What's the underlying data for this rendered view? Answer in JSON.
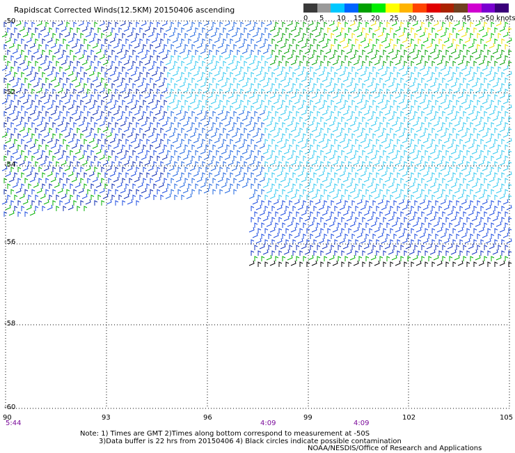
{
  "title": "Rapidscat Corrected Winds(12.5KM) 20150406 ascending",
  "scale": {
    "labels": [
      "0",
      "5",
      "10",
      "15",
      "20",
      "25",
      "30",
      "35",
      "40",
      "45",
      ">50 knots"
    ],
    "colors": [
      "#3a3a3a",
      "#9a9a9a",
      "#00c8ff",
      "#0064ff",
      "#00a000",
      "#00ee00",
      "#ffff00",
      "#ffb400",
      "#ff4400",
      "#e00000",
      "#aa2200",
      "#704020",
      "#d000d0",
      "#7a00d0",
      "#3a007a"
    ]
  },
  "map": {
    "lat_labels": [
      "-50",
      "-52",
      "-54",
      "-56",
      "-58",
      "-60"
    ],
    "lon_labels": [
      "90",
      "93",
      "96",
      "99",
      "102",
      "105"
    ],
    "time_labels": [
      "5:44",
      "4:09",
      "4:09"
    ]
  },
  "notes": {
    "line1": "Note: 1) Times are GMT 2)Times along bottom correspond to measurement at -50S",
    "line2": "3)Data buffer is 22 hrs from 20150406 4) Black circles indicate possible contamination",
    "credit": "NOAA/NESDIS/Office of Research and Applications"
  }
}
